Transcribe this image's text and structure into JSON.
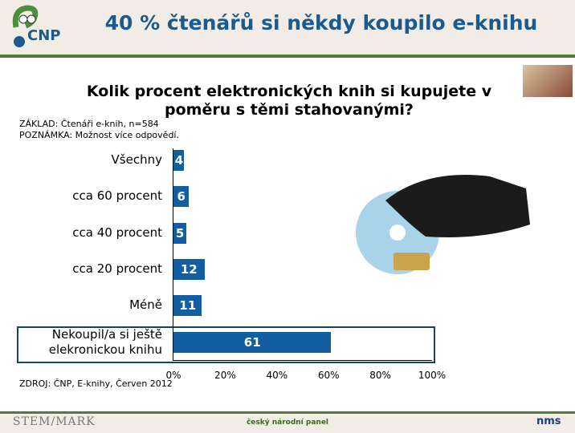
{
  "header": {
    "title": "40 % čtenářů si někdy koupilo e-knihu",
    "logo": "CNP"
  },
  "question": "Kolik procent elektronických knih si kupujete v poměru s těmi stahovanými?",
  "notes": {
    "base": "ZÁKLAD: Čtenáři e-knih, n=584",
    "remark": "POZNÁMKA: Možnost více odpovědí.",
    "source": "ZDROJ: ČNP, E-knihy, Červen 2012"
  },
  "footer": {
    "left_logo": "STEM/MARK",
    "center": "český národní panel",
    "right_logo": "nms"
  },
  "chart_data": {
    "type": "bar",
    "orientation": "horizontal",
    "title": "Kolik procent elektronických knih si kupujete v poměru s těmi stahovanými?",
    "categories": [
      "Všechny",
      "cca 60 procent",
      "cca 40 procent",
      "cca 20 procent",
      "Méně",
      "Nekoupil/a si ještě elekronickou knihu"
    ],
    "values": [
      4,
      6,
      5,
      12,
      11,
      61
    ],
    "xlim": [
      0,
      100
    ],
    "ticks": [
      "0%",
      "20%",
      "40%",
      "60%",
      "80%",
      "100%"
    ],
    "highlighted_category": "Nekoupil/a si ještě elekronickou knihu",
    "bar_color": "#135ea0",
    "grid": false
  }
}
